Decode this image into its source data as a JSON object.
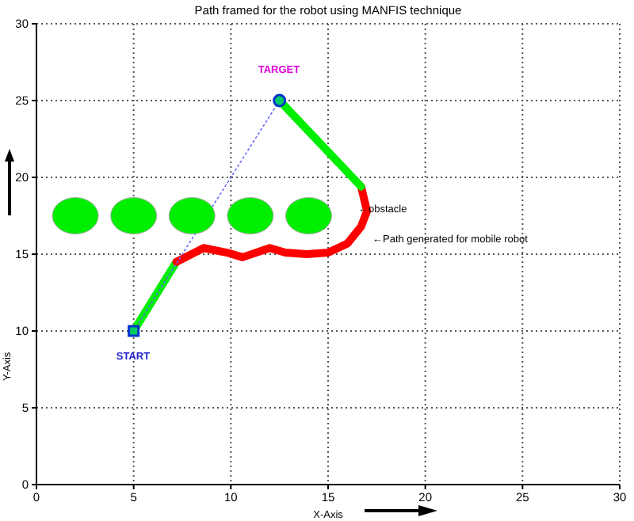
{
  "chart_data": {
    "type": "line",
    "title": "Path framed for the robot using MANFIS technique",
    "xlabel": "X-Axis",
    "ylabel": "Y-Axis",
    "xlim": [
      0,
      30
    ],
    "ylim": [
      0,
      30
    ],
    "xticks": [
      0,
      5,
      10,
      15,
      20,
      25,
      30
    ],
    "yticks": [
      0,
      5,
      10,
      15,
      20,
      25,
      30
    ],
    "grid": true,
    "line_style": "solid",
    "series": [
      {
        "color": "#00ee00",
        "x": [
          5,
          7.2
        ],
        "values": [
          10,
          14.5
        ],
        "marker": "none"
      },
      {
        "color": "#ff0000",
        "x": [
          7.2,
          8.6,
          9.8,
          10.6,
          12,
          12.8,
          13.9,
          15,
          16,
          16.7,
          17,
          16.7
        ],
        "values": [
          14.5,
          15.4,
          15.1,
          14.8,
          15.4,
          15.1,
          15,
          15.1,
          15.7,
          16.8,
          17.8,
          19.4
        ],
        "marker": "none"
      },
      {
        "color": "#00ee00",
        "x": [
          16.7,
          12.5
        ],
        "values": [
          19.4,
          25
        ],
        "marker": "none"
      },
      {
        "color": "#6666ff",
        "x": [
          5,
          12.5
        ],
        "values": [
          10,
          25
        ],
        "marker": "none",
        "line_style": "dotted"
      },
      {
        "type": "scatter",
        "color": "#00ee00",
        "x": [
          2,
          5,
          8,
          11,
          14
        ],
        "values": [
          17.5,
          17.5,
          17.5,
          17.5,
          17.5
        ],
        "marker": "circle"
      },
      {
        "type": "scatter",
        "color": "#0033cc",
        "x": [
          5
        ],
        "values": [
          10
        ],
        "marker": "square"
      },
      {
        "type": "scatter",
        "color": "#0033cc",
        "x": [
          12.5
        ],
        "values": [
          25
        ],
        "marker": "circle"
      }
    ],
    "annotations": [
      "TARGET",
      "START",
      "←obstacle",
      "←Path generated for mobile robot"
    ]
  }
}
